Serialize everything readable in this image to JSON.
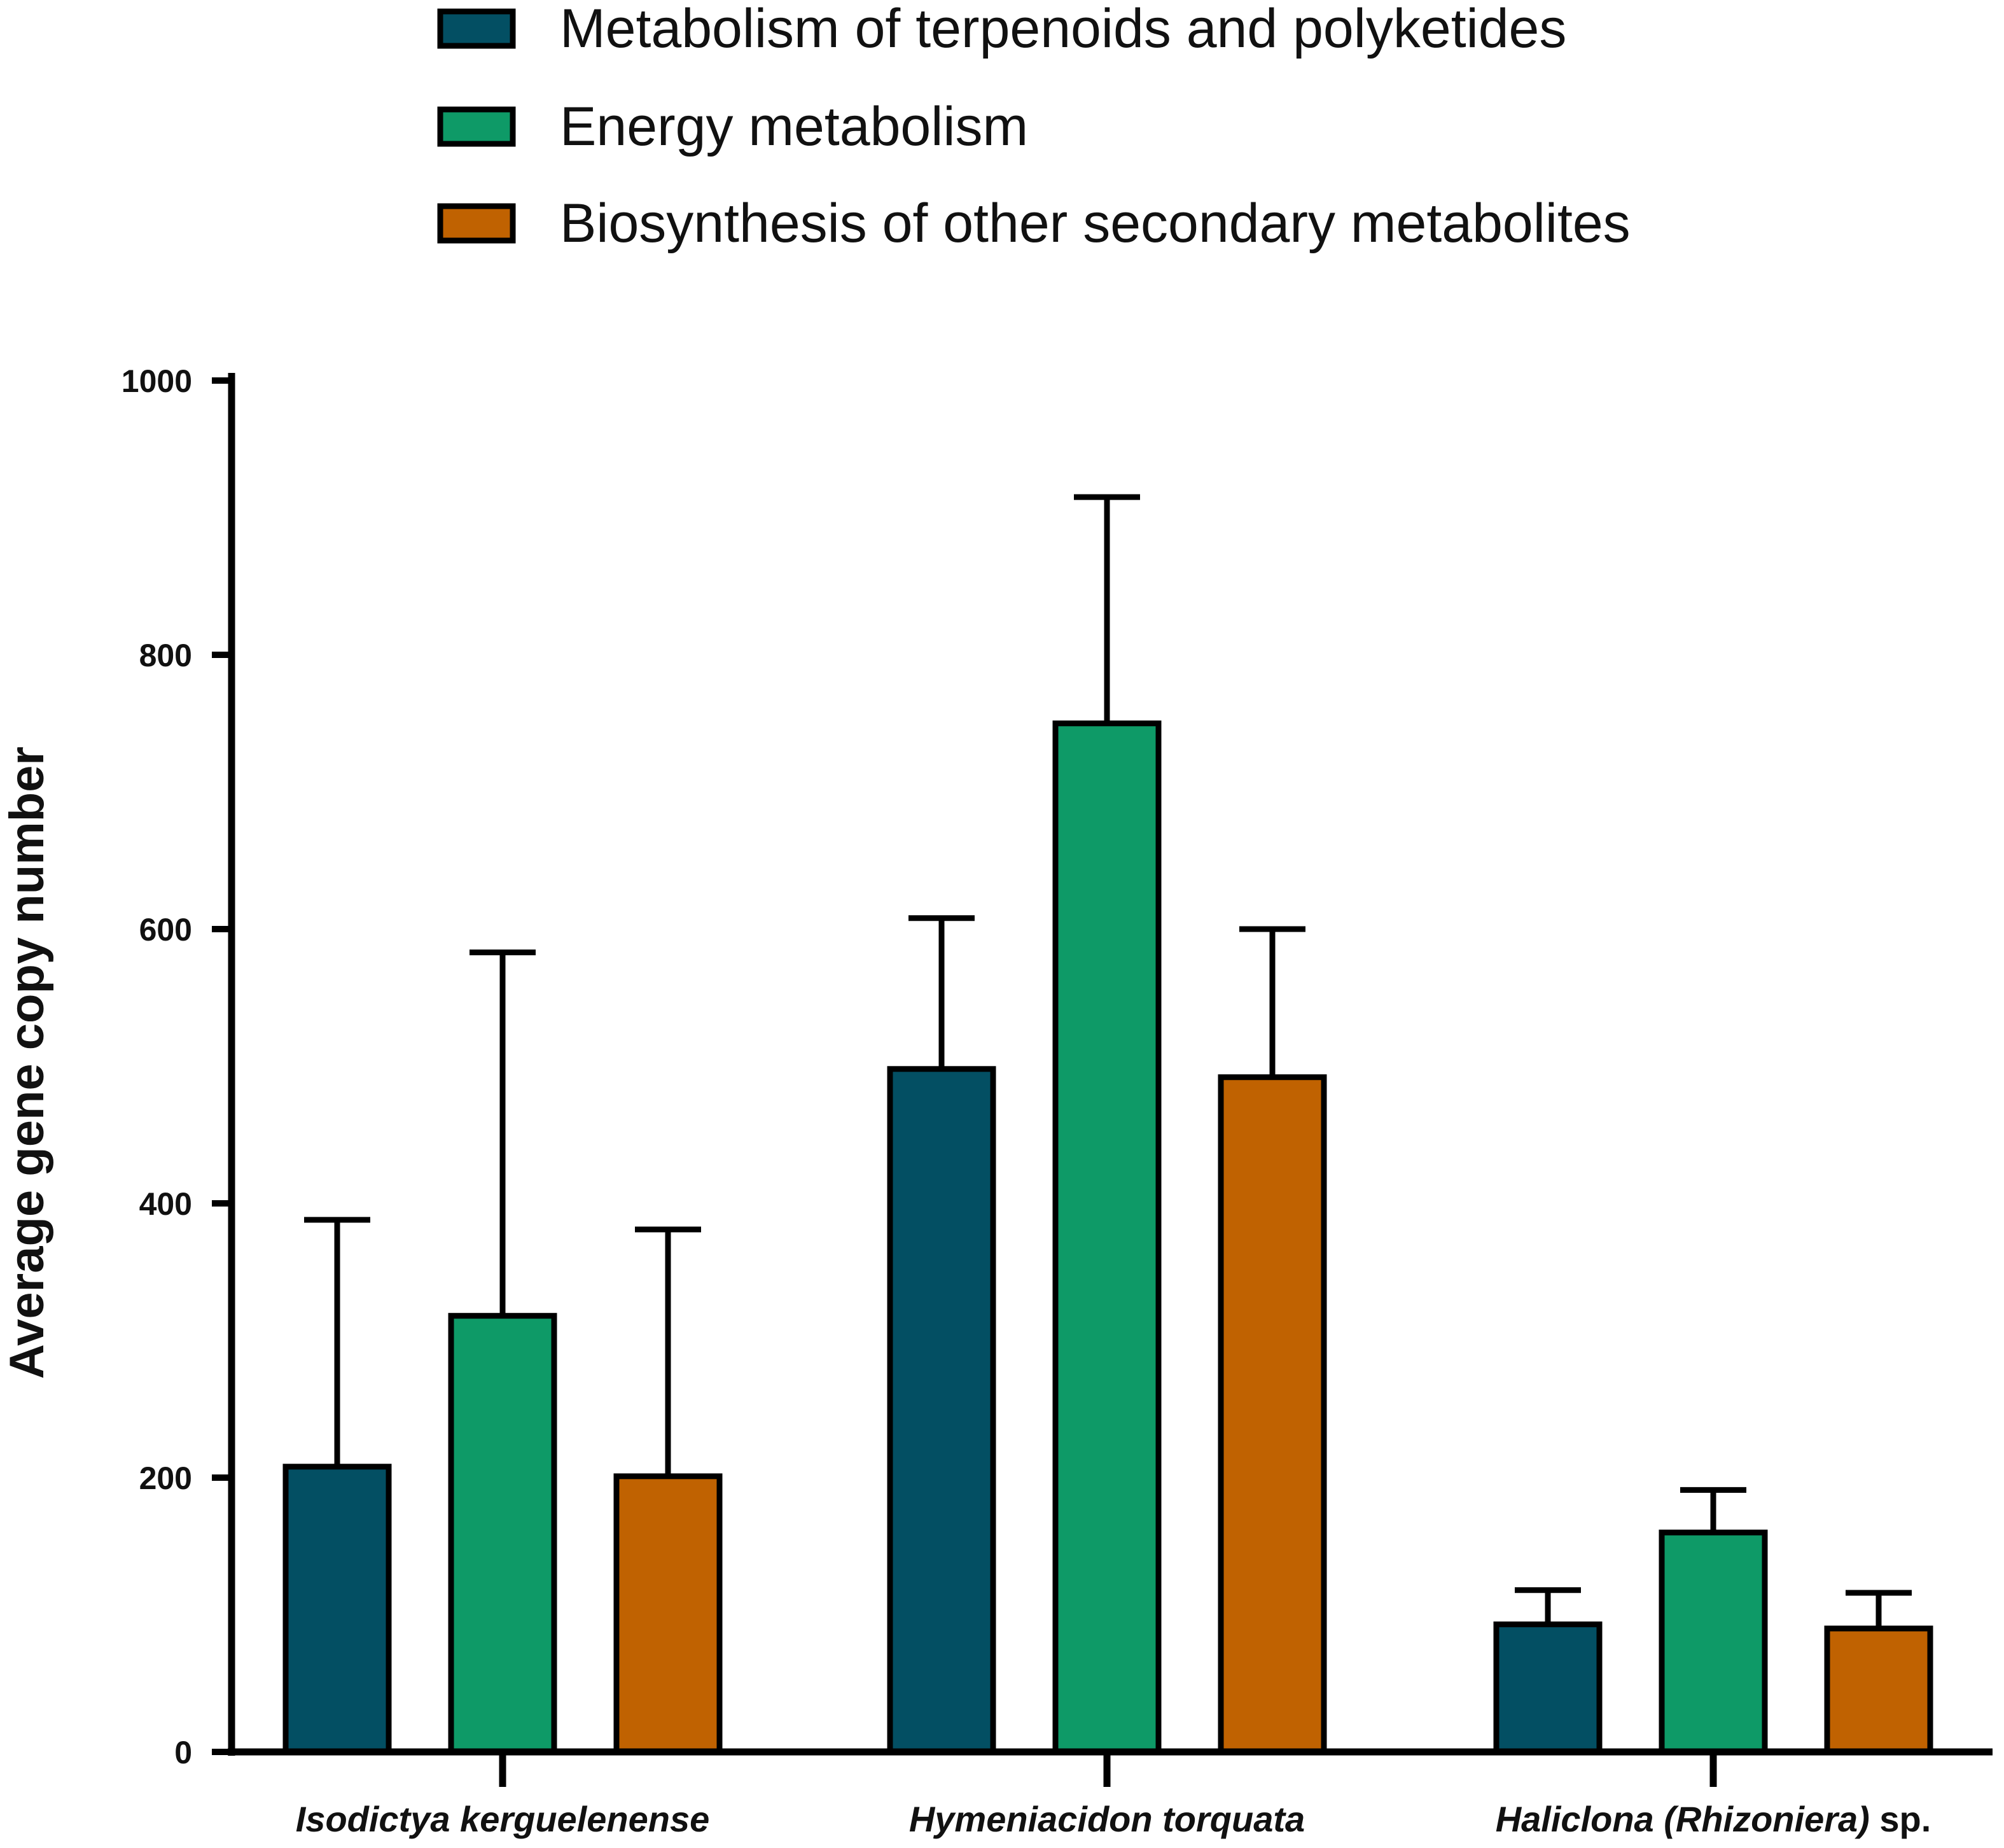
{
  "chart_data": {
    "type": "bar",
    "title": "",
    "xlabel": "",
    "ylabel": "Average gene copy number",
    "ylim": [
      0,
      1000
    ],
    "yticks": [
      0,
      200,
      400,
      600,
      800,
      1000
    ],
    "grid": false,
    "legend_position": "top",
    "categories": [
      {
        "name": "Isodictya kerguelenense",
        "suffix": ""
      },
      {
        "name": "Hymeniacidon torquata",
        "suffix": ""
      },
      {
        "name": "Haliclona (Rhizoniera)",
        "suffix": " sp."
      }
    ],
    "series": [
      {
        "name": "Metabolism of terpenoids and polyketides",
        "color": "#034f63",
        "values": [
          208,
          498,
          93
        ],
        "errors": [
          180,
          110,
          25
        ]
      },
      {
        "name": "Energy metabolism",
        "color": "#0e9a67",
        "values": [
          318,
          750,
          160
        ],
        "errors": [
          265,
          165,
          31
        ]
      },
      {
        "name": "Biosynthesis of other secondary metabolites",
        "color": "#c06201",
        "values": [
          201,
          492,
          90
        ],
        "errors": [
          180,
          108,
          26
        ]
      }
    ]
  }
}
